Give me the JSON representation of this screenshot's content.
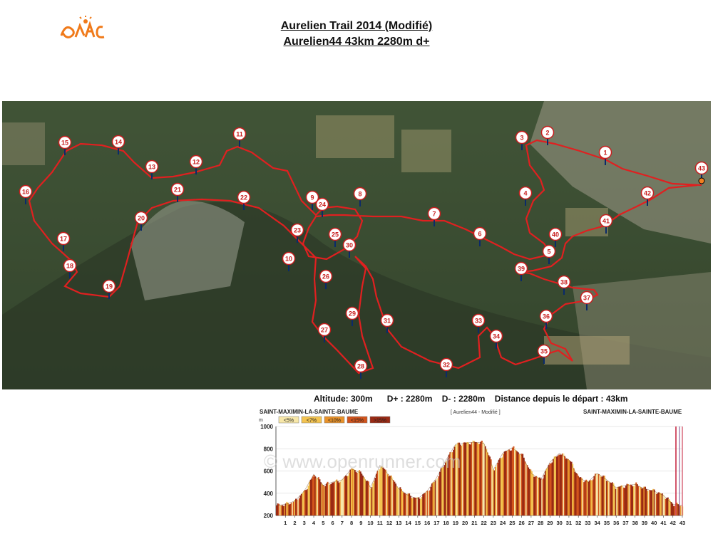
{
  "header": {
    "title": "Aurelien Trail 2014 (Modifié)",
    "subtitle": "Aurelien44  43km 2280m d+"
  },
  "logo": {
    "icon": "trail-runner-logo-icon",
    "color": "#f07a1a"
  },
  "stats": {
    "altitude": "Altitude: 300m",
    "d_plus": "D+ : 2280m",
    "d_minus": "D- : 2280m",
    "distance": "Distance depuis le départ : 43km"
  },
  "map": {
    "route_color": "#e02020",
    "checkpoints": [
      "1",
      "2",
      "3",
      "4",
      "5",
      "6",
      "7",
      "8",
      "9",
      "10",
      "11",
      "12",
      "13",
      "14",
      "15",
      "16",
      "17",
      "18",
      "19",
      "20",
      "21",
      "22",
      "23",
      "24",
      "25",
      "26",
      "27",
      "28",
      "29",
      "30",
      "31",
      "32",
      "33",
      "34",
      "35",
      "36",
      "37",
      "38",
      "39",
      "40",
      "41",
      "42",
      "43"
    ]
  },
  "profile": {
    "start_label": "SAINT-MAXIMIN-LA-SAINTE-BAUME",
    "end_label": "SAINT-MAXIMIN-LA-SAINTE-BAUME",
    "track_label": "[ Aurelien44 - Modifié ]",
    "unit": "m",
    "watermark": "© www.openrunner.com",
    "legend": [
      {
        "label": "<5%",
        "color": "#f7e7a8"
      },
      {
        "label": "<7%",
        "color": "#f3c350"
      },
      {
        "label": "<10%",
        "color": "#e8922a"
      },
      {
        "label": "<15%",
        "color": "#d2541c"
      },
      {
        "label": ">15%",
        "color": "#9a2a14"
      }
    ],
    "y_ticks": [
      "1000",
      "800",
      "600",
      "400",
      "200"
    ],
    "x_ticks": [
      "1",
      "2",
      "3",
      "4",
      "5",
      "6",
      "7",
      "8",
      "9",
      "10",
      "11",
      "12",
      "13",
      "14",
      "15",
      "16",
      "17",
      "18",
      "19",
      "20",
      "21",
      "22",
      "23",
      "24",
      "25",
      "26",
      "27",
      "28",
      "29",
      "30",
      "31",
      "32",
      "33",
      "34",
      "35",
      "36",
      "37",
      "38",
      "39",
      "40",
      "41",
      "42",
      "43"
    ]
  },
  "chart_data": {
    "type": "area",
    "title": "[ Aurelien44 - Modifié ]",
    "xlabel": "",
    "ylabel": "m",
    "xlim": [
      0,
      43
    ],
    "ylim": [
      200,
      1000
    ],
    "x": [
      0,
      1,
      2,
      3,
      4,
      5,
      6,
      7,
      8,
      9,
      10,
      11,
      12,
      13,
      14,
      15,
      16,
      17,
      18,
      19,
      20,
      21,
      22,
      23,
      24,
      25,
      26,
      27,
      28,
      29,
      30,
      31,
      32,
      33,
      34,
      35,
      36,
      37,
      38,
      39,
      40,
      41,
      42,
      43
    ],
    "y": [
      290,
      300,
      330,
      420,
      570,
      470,
      500,
      520,
      620,
      580,
      450,
      650,
      560,
      440,
      380,
      350,
      420,
      540,
      700,
      840,
      850,
      860,
      850,
      610,
      760,
      810,
      740,
      580,
      520,
      680,
      760,
      700,
      540,
      500,
      580,
      520,
      450,
      470,
      480,
      440,
      420,
      380,
      300,
      290
    ]
  }
}
